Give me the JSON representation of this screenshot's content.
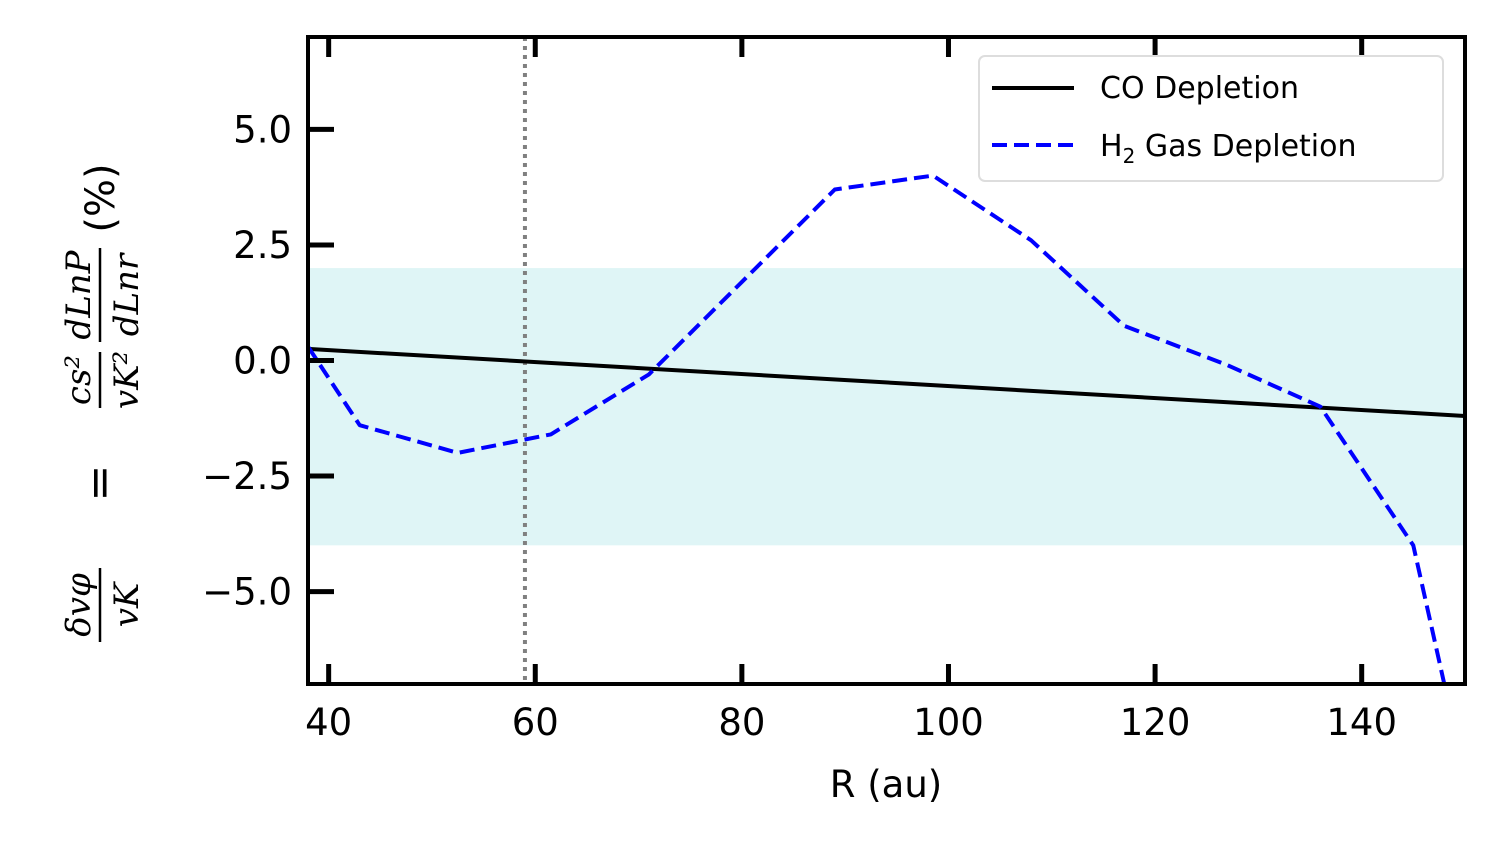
{
  "chart_data": {
    "type": "line",
    "title": "",
    "xlabel": "R (au)",
    "ylabel": "δvφ/vK = cs²/vK² dLnP/dLnr (%)",
    "ylabel_parts": {
      "num1": "δvφ",
      "den1": "vK",
      "eq": "=",
      "num2": "cs²",
      "den2": "vK²",
      "num3": "dLnP",
      "den3": "dLnr",
      "unit": "(%)"
    },
    "xlim": [
      38,
      150
    ],
    "ylim": [
      -7.0,
      7.0
    ],
    "xticks": [
      40,
      60,
      80,
      100,
      120,
      140
    ],
    "xtick_labels": [
      "40",
      "60",
      "80",
      "100",
      "120",
      "140"
    ],
    "yticks": [
      5.0,
      2.5,
      0.0,
      -2.5,
      -5.0
    ],
    "ytick_labels": [
      "5.0",
      "2.5",
      "0.0",
      "−2.5",
      "−5.0"
    ],
    "band": {
      "ymin": -4.0,
      "ymax": 2.0,
      "color": "#dff5f6"
    },
    "vline": {
      "x": 59,
      "color": "#808080",
      "style": "dotted"
    },
    "series": [
      {
        "name": "CO Depletion",
        "color": "#000000",
        "style": "solid",
        "x": [
          38,
          150
        ],
        "y": [
          0.25,
          -1.2
        ]
      },
      {
        "name": "H2 Gas Depletion",
        "legend_main": "H",
        "legend_sub": "2",
        "legend_rest": " Gas Depletion",
        "color": "#0000ff",
        "style": "dashed",
        "x": [
          38,
          43,
          52.5,
          61.5,
          71,
          80,
          89,
          98.5,
          108,
          117,
          127,
          136,
          145,
          148
        ],
        "y": [
          0.3,
          -1.4,
          -2.0,
          -1.6,
          -0.3,
          1.7,
          3.7,
          4.0,
          2.6,
          0.75,
          -0.1,
          -1.0,
          -4.0,
          -7.0
        ]
      }
    ],
    "legend_position": "top-right"
  }
}
